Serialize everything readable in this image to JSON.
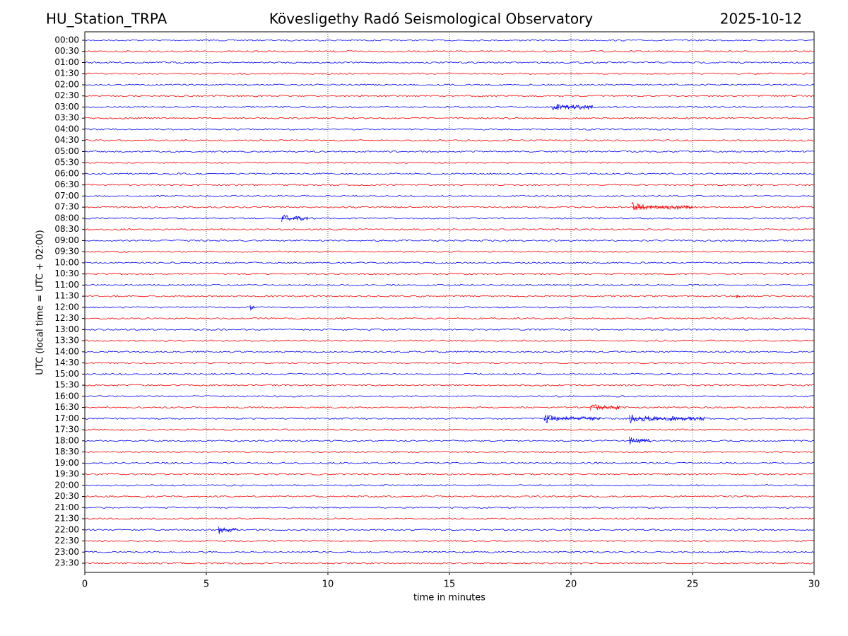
{
  "chart_data": {
    "type": "helicorder",
    "title": "Kövesligethy Radó Seismological Observatory",
    "station": "HU_Station_TRPA",
    "date": "2025-10-12",
    "y_label": "UTC (local time = UTC + 02:00)",
    "x_label": "time in minutes",
    "categories": [
      "00:00",
      "00:30",
      "01:00",
      "01:30",
      "02:00",
      "02:30",
      "03:00",
      "03:30",
      "04:00",
      "04:30",
      "05:00",
      "05:30",
      "06:00",
      "06:30",
      "07:00",
      "07:30",
      "08:00",
      "08:30",
      "09:00",
      "09:30",
      "10:00",
      "10:30",
      "11:00",
      "11:30",
      "12:00",
      "12:30",
      "13:00",
      "13:30",
      "14:00",
      "14:30",
      "15:00",
      "15:30",
      "16:00",
      "16:30",
      "17:00",
      "17:30",
      "18:00",
      "18:30",
      "19:00",
      "19:30",
      "20:00",
      "20:30",
      "21:00",
      "21:30",
      "22:00",
      "22:30",
      "23:00",
      "23:30"
    ],
    "colors": [
      "#0000ff",
      "#ff0000"
    ],
    "xlim": [
      0,
      30
    ],
    "xticks": [
      0,
      5,
      10,
      15,
      20,
      25,
      30
    ],
    "grid": true,
    "events": [
      {
        "row": "03:00",
        "start": 19.2,
        "end": 20.9
      },
      {
        "row": "07:30",
        "start": 22.5,
        "end": 25.0
      },
      {
        "row": "08:00",
        "start": 8.1,
        "end": 9.2
      },
      {
        "row": "11:30",
        "start": 26.8,
        "end": 26.95
      },
      {
        "row": "12:00",
        "start": 6.8,
        "end": 7.0
      },
      {
        "row": "16:30",
        "start": 20.8,
        "end": 22.0
      },
      {
        "row": "17:00",
        "start": 18.9,
        "end": 21.2
      },
      {
        "row": "17:00",
        "start": 22.4,
        "end": 25.5
      },
      {
        "row": "18:00",
        "start": 22.4,
        "end": 23.3
      },
      {
        "row": "22:00",
        "start": 5.5,
        "end": 6.3
      }
    ]
  }
}
